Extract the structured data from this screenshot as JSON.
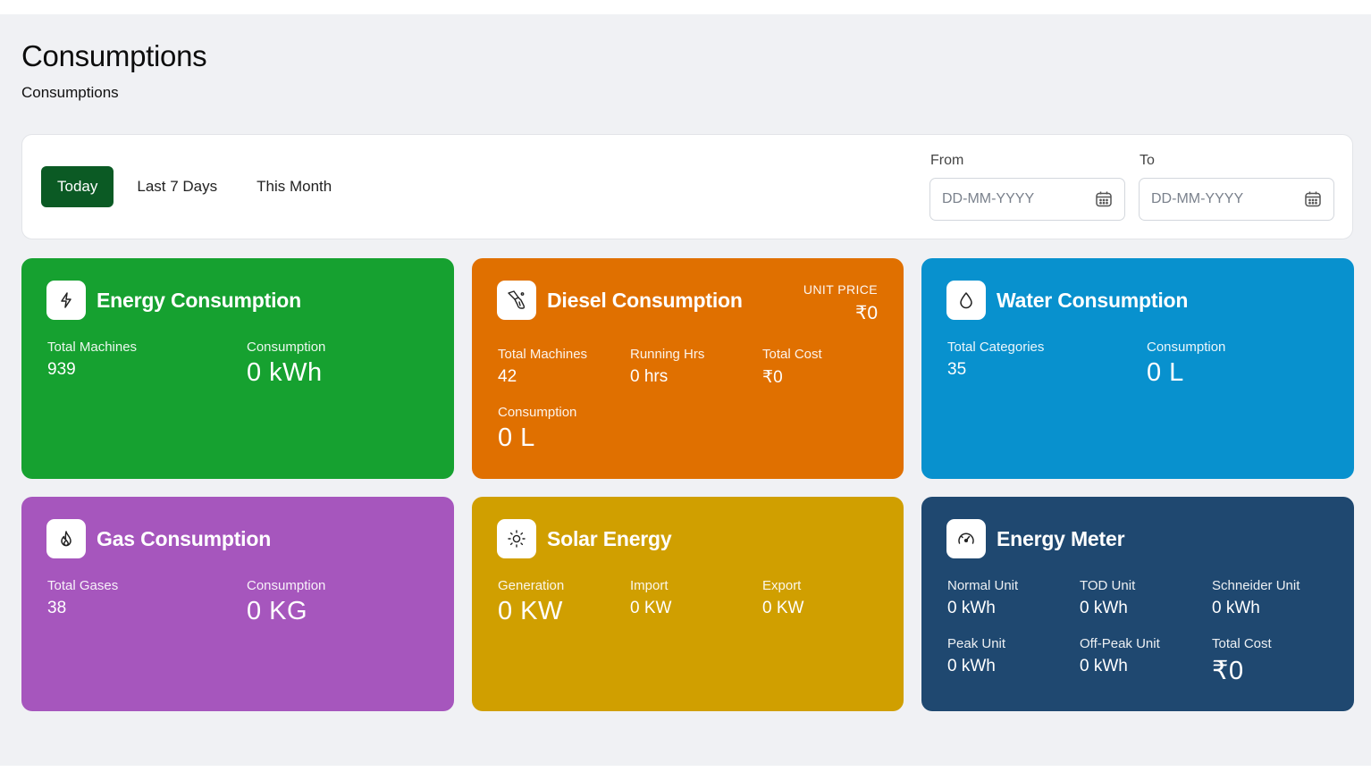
{
  "header": {
    "title": "Consumptions",
    "subtitle": "Consumptions"
  },
  "filters": {
    "tabs": [
      "Today",
      "Last 7 Days",
      "This Month"
    ],
    "active_tab": "Today",
    "from": {
      "label": "From",
      "placeholder": "DD-MM-YYYY",
      "icon": "calendar-icon"
    },
    "to": {
      "label": "To",
      "placeholder": "DD-MM-YYYY",
      "icon": "calendar-icon"
    }
  },
  "colors": {
    "accent": "#0b5a24",
    "energy": "#16a130",
    "diesel": "#e07000",
    "water": "#0891ce",
    "gas": "#a656bd",
    "solar": "#d09f00",
    "meter": "#1f4870"
  },
  "cards": {
    "energy": {
      "icon": "lightning-icon",
      "title": "Energy Consumption",
      "total_machines_label": "Total Machines",
      "total_machines_value": "939",
      "consumption_label": "Consumption",
      "consumption_value": "0 kWh"
    },
    "diesel": {
      "icon": "fuel-nozzle-icon",
      "title": "Diesel Consumption",
      "unit_price_label": "UNIT PRICE",
      "unit_price_value": "₹0",
      "total_machines_label": "Total Machines",
      "total_machines_value": "42",
      "running_hrs_label": "Running Hrs",
      "running_hrs_value": "0 hrs",
      "total_cost_label": "Total Cost",
      "total_cost_value": "₹0",
      "consumption_label": "Consumption",
      "consumption_value": "0 L"
    },
    "water": {
      "icon": "water-drop-icon",
      "title": "Water Consumption",
      "total_categories_label": "Total Categories",
      "total_categories_value": "35",
      "consumption_label": "Consumption",
      "consumption_value": "0 L"
    },
    "gas": {
      "icon": "flame-icon",
      "title": "Gas Consumption",
      "total_gases_label": "Total Gases",
      "total_gases_value": "38",
      "consumption_label": "Consumption",
      "consumption_value": "0 KG"
    },
    "solar": {
      "icon": "sun-icon",
      "title": "Solar Energy",
      "generation_label": "Generation",
      "generation_value": "0 KW",
      "import_label": "Import",
      "import_value": "0 KW",
      "export_label": "Export",
      "export_value": "0 KW"
    },
    "meter": {
      "icon": "gauge-icon",
      "title": "Energy Meter",
      "normal_unit_label": "Normal Unit",
      "normal_unit_value": "0 kWh",
      "tod_unit_label": "TOD Unit",
      "tod_unit_value": "0 kWh",
      "schneider_unit_label": "Schneider Unit",
      "schneider_unit_value": "0 kWh",
      "peak_unit_label": "Peak Unit",
      "peak_unit_value": "0 kWh",
      "off_peak_unit_label": "Off-Peak Unit",
      "off_peak_unit_value": "0 kWh",
      "total_cost_label": "Total Cost",
      "total_cost_value": "₹0"
    }
  }
}
